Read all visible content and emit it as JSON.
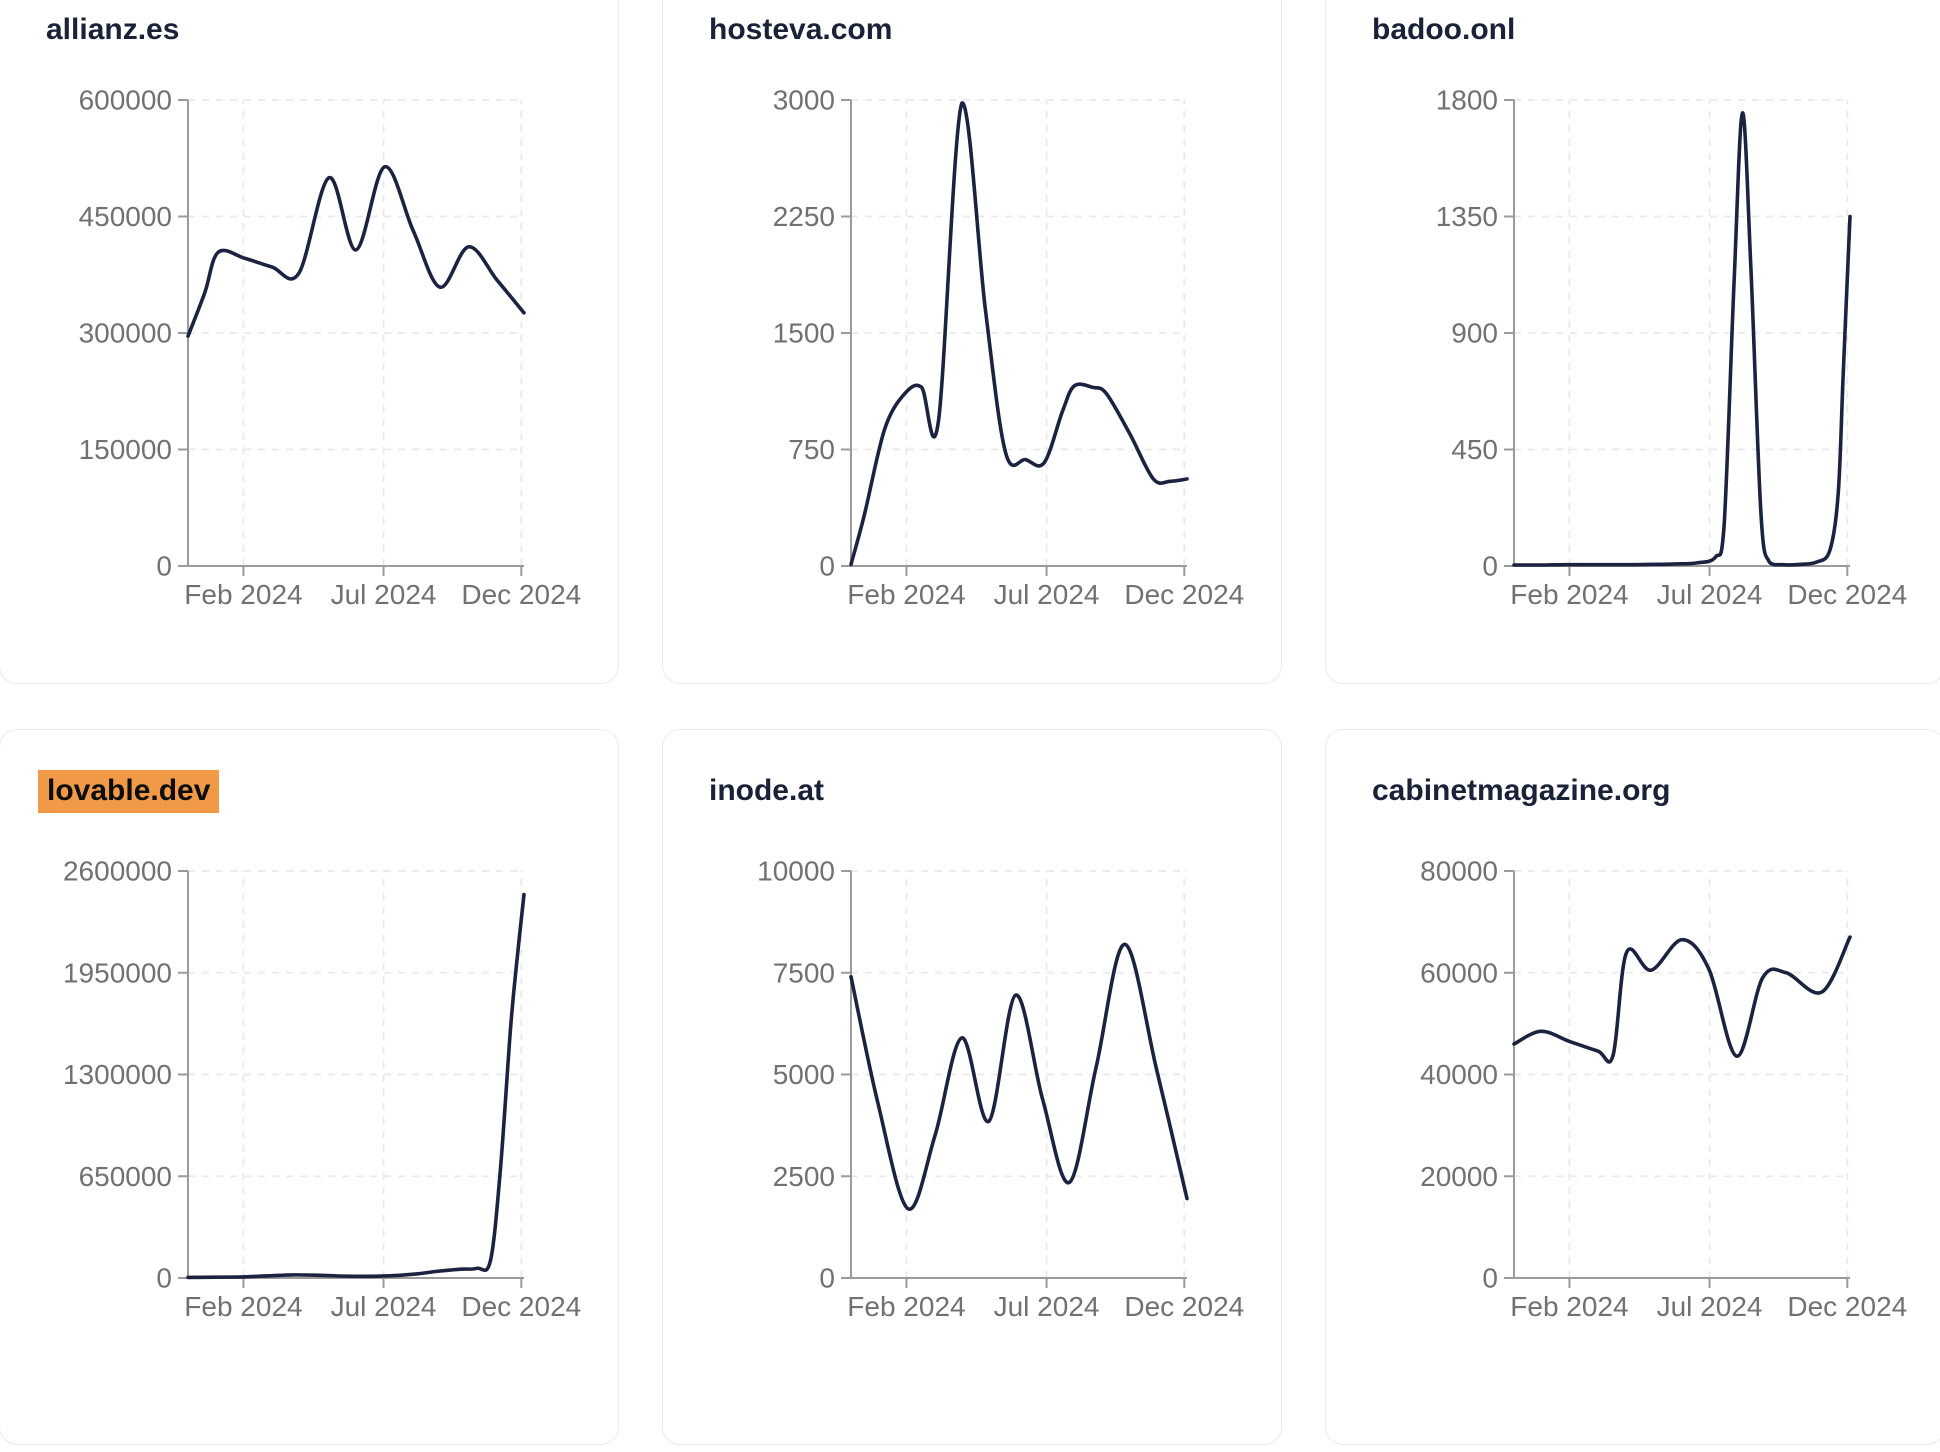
{
  "style": {
    "line_color": "#1b2340",
    "title_color": "#1a2238",
    "tick_label_color": "#717171",
    "axis_color": "#9b9b9b",
    "grid_color": "#e9e9e9",
    "card_border_color": "#e8eaf1",
    "card_bg": "#ffffff",
    "highlight_color": "#f09a47",
    "highlight_text_color": "#0d0d0d"
  },
  "x_axis": {
    "ticks": [
      {
        "label": "Feb 2024",
        "t": 0.165
      },
      {
        "label": "Jul 2024",
        "t": 0.582
      },
      {
        "label": "Dec 2024",
        "t": 0.992
      }
    ]
  },
  "chart_data": [
    {
      "type": "line",
      "title": "allianz.es",
      "highlighted": false,
      "ylim": [
        0,
        600000
      ],
      "yticks": [
        0,
        150000,
        300000,
        450000,
        600000
      ],
      "xticks": [
        "Feb 2024",
        "Jul 2024",
        "Dec 2024"
      ],
      "grid": true,
      "x": [
        0,
        0.05,
        0.09,
        0.17,
        0.25,
        0.33,
        0.42,
        0.5,
        0.585,
        0.67,
        0.75,
        0.835,
        0.92,
        1.0
      ],
      "values": [
        296000,
        352000,
        404000,
        396000,
        385000,
        377000,
        500000,
        407000,
        514000,
        432000,
        359000,
        411000,
        368000,
        326000
      ]
    },
    {
      "type": "line",
      "title": "hosteva.com",
      "highlighted": false,
      "ylim": [
        0,
        3000
      ],
      "yticks": [
        0,
        750,
        1500,
        2250,
        3000
      ],
      "xticks": [
        "Feb 2024",
        "Jul 2024",
        "Dec 2024"
      ],
      "grid": true,
      "x": [
        0,
        0.04,
        0.1,
        0.16,
        0.21,
        0.26,
        0.33,
        0.4,
        0.46,
        0.52,
        0.575,
        0.63,
        0.665,
        0.72,
        0.76,
        0.83,
        0.9,
        0.95,
        1.0
      ],
      "values": [
        10,
        330,
        880,
        1110,
        1150,
        930,
        2980,
        1650,
        730,
        685,
        665,
        1000,
        1160,
        1150,
        1110,
        850,
        560,
        545,
        560
      ]
    },
    {
      "type": "line",
      "title": "badoo.onl",
      "highlighted": false,
      "ylim": [
        0,
        1800
      ],
      "yticks": [
        0,
        450,
        900,
        1350,
        1800
      ],
      "xticks": [
        "Feb 2024",
        "Jul 2024",
        "Dec 2024"
      ],
      "grid": true,
      "x": [
        0,
        0.08,
        0.16,
        0.24,
        0.32,
        0.4,
        0.48,
        0.545,
        0.6,
        0.625,
        0.655,
        0.68,
        0.705,
        0.735,
        0.76,
        0.8,
        0.85,
        0.9,
        0.94,
        0.965,
        0.98,
        1.0
      ],
      "values": [
        4,
        4,
        5,
        5,
        5,
        6,
        8,
        12,
        35,
        150,
        1100,
        1750,
        1150,
        200,
        15,
        5,
        6,
        15,
        60,
        280,
        750,
        1350
      ]
    },
    {
      "type": "line",
      "title": "lovable.dev",
      "highlighted": true,
      "ylim": [
        0,
        2600000
      ],
      "yticks": [
        0,
        650000,
        1300000,
        1950000,
        2600000
      ],
      "xticks": [
        "Feb 2024",
        "Jul 2024",
        "Dec 2024"
      ],
      "grid": true,
      "x": [
        0,
        0.08,
        0.16,
        0.24,
        0.31,
        0.38,
        0.45,
        0.52,
        0.6,
        0.68,
        0.75,
        0.81,
        0.86,
        0.9,
        0.93,
        0.96,
        0.98,
        1.0
      ],
      "values": [
        4000,
        5000,
        7000,
        14000,
        20000,
        18000,
        13000,
        11000,
        14000,
        26000,
        45000,
        56000,
        62000,
        110000,
        700000,
        1600000,
        2050000,
        2450000
      ]
    },
    {
      "type": "line",
      "title": "inode.at",
      "highlighted": false,
      "ylim": [
        0,
        10000
      ],
      "yticks": [
        0,
        2500,
        5000,
        7500,
        10000
      ],
      "xticks": [
        "Feb 2024",
        "Jul 2024",
        "Dec 2024"
      ],
      "grid": true,
      "x": [
        0,
        0.08,
        0.17,
        0.25,
        0.33,
        0.41,
        0.49,
        0.57,
        0.65,
        0.73,
        0.815,
        0.91,
        1.0
      ],
      "values": [
        7400,
        4300,
        1700,
        3500,
        5900,
        3850,
        6950,
        4400,
        2350,
        5200,
        8200,
        5100,
        1950
      ]
    },
    {
      "type": "line",
      "title": "cabinetmagazine.org",
      "highlighted": false,
      "ylim": [
        0,
        80000
      ],
      "yticks": [
        0,
        20000,
        40000,
        60000,
        80000
      ],
      "xticks": [
        "Feb 2024",
        "Jul 2024",
        "Dec 2024"
      ],
      "grid": true,
      "x": [
        0,
        0.08,
        0.165,
        0.25,
        0.295,
        0.335,
        0.408,
        0.5,
        0.58,
        0.663,
        0.74,
        0.81,
        0.916,
        1.0
      ],
      "values": [
        46000,
        48500,
        46500,
        44600,
        43800,
        64000,
        60500,
        66500,
        60700,
        43600,
        59000,
        60000,
        56200,
        67000
      ]
    }
  ]
}
